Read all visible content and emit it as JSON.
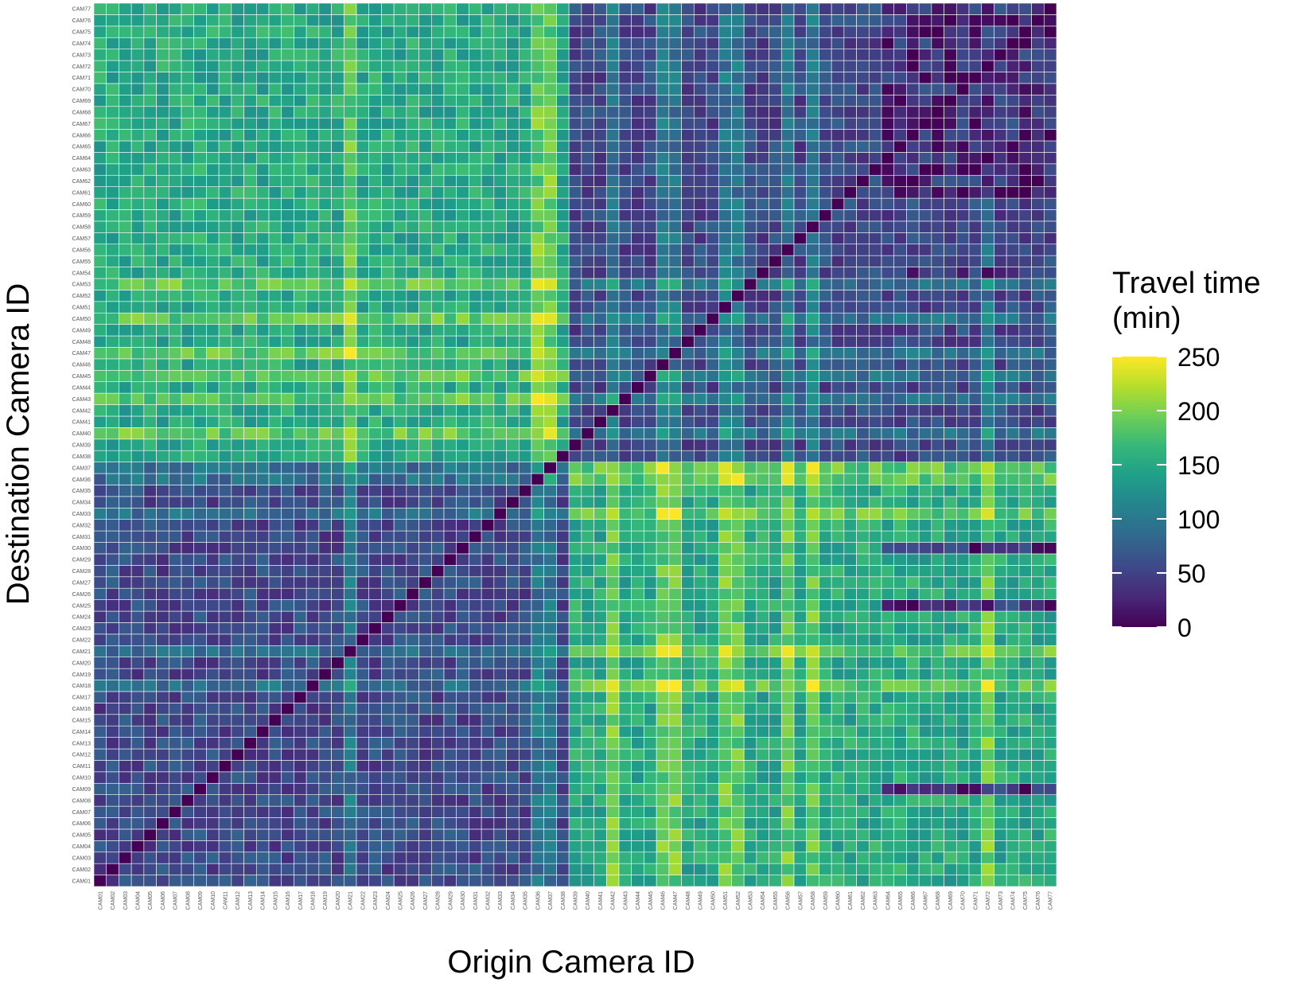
{
  "chart_data": {
    "type": "heatmap",
    "title": "",
    "xlabel": "Origin Camera ID",
    "ylabel": "Destination Camera ID",
    "x_categories": [
      "CAM01",
      "CAM02",
      "CAM03",
      "CAM04",
      "CAM05",
      "CAM06",
      "CAM07",
      "CAM08",
      "CAM09",
      "CAM10",
      "CAM11",
      "CAM12",
      "CAM13",
      "CAM14",
      "CAM15",
      "CAM16",
      "CAM17",
      "CAM18",
      "CAM19",
      "CAM20",
      "CAM21",
      "CAM22",
      "CAM23",
      "CAM24",
      "CAM25",
      "CAM26",
      "CAM27",
      "CAM28",
      "CAM29",
      "CAM30",
      "CAM31",
      "CAM32",
      "CAM33",
      "CAM34",
      "CAM35",
      "CAM36",
      "CAM37",
      "CAM38",
      "CAM39",
      "CAM40",
      "CAM41",
      "CAM42",
      "CAM43",
      "CAM44",
      "CAM45",
      "CAM46",
      "CAM47",
      "CAM48",
      "CAM49",
      "CAM50",
      "CAM51",
      "CAM52",
      "CAM53",
      "CAM54",
      "CAM55",
      "CAM56",
      "CAM57",
      "CAM58",
      "CAM59",
      "CAM60",
      "CAM61",
      "CAM62",
      "CAM63",
      "CAM64",
      "CAM65",
      "CAM66",
      "CAM67",
      "CAM68",
      "CAM69",
      "CAM70",
      "CAM71",
      "CAM72",
      "CAM73",
      "CAM74",
      "CAM75",
      "CAM76",
      "CAM77"
    ],
    "y_categories": [
      "CAM01",
      "CAM02",
      "CAM03",
      "CAM04",
      "CAM05",
      "CAM06",
      "CAM07",
      "CAM08",
      "CAM09",
      "CAM10",
      "CAM11",
      "CAM12",
      "CAM13",
      "CAM14",
      "CAM15",
      "CAM16",
      "CAM17",
      "CAM18",
      "CAM19",
      "CAM20",
      "CAM21",
      "CAM22",
      "CAM23",
      "CAM24",
      "CAM25",
      "CAM26",
      "CAM27",
      "CAM28",
      "CAM29",
      "CAM30",
      "CAM31",
      "CAM32",
      "CAM33",
      "CAM34",
      "CAM35",
      "CAM36",
      "CAM37",
      "CAM38",
      "CAM39",
      "CAM40",
      "CAM41",
      "CAM42",
      "CAM43",
      "CAM44",
      "CAM45",
      "CAM46",
      "CAM47",
      "CAM48",
      "CAM49",
      "CAM50",
      "CAM51",
      "CAM52",
      "CAM53",
      "CAM54",
      "CAM55",
      "CAM56",
      "CAM57",
      "CAM58",
      "CAM59",
      "CAM60",
      "CAM61",
      "CAM62",
      "CAM63",
      "CAM64",
      "CAM65",
      "CAM66",
      "CAM67",
      "CAM68",
      "CAM69",
      "CAM70",
      "CAM71",
      "CAM72",
      "CAM73",
      "CAM74",
      "CAM75",
      "CAM76",
      "CAM77"
    ],
    "value_range": [
      0,
      250
    ],
    "estimation": {
      "origin_cluster_range": [
        [
          0,
          37
        ],
        [
          38,
          76
        ]
      ],
      "destination_cluster_range": [
        [
          0,
          36
        ],
        [
          37,
          76
        ]
      ],
      "within_cluster_mean": 55,
      "cross_cluster_mean": 150,
      "high_origin_cols": [
        20,
        35,
        36,
        41,
        45,
        46,
        50,
        51,
        55,
        57,
        71
      ],
      "high_destination_rows": [
        17,
        20,
        32,
        35,
        36,
        39,
        42,
        44,
        46,
        49,
        52
      ],
      "high_boost": 60,
      "low_rows": [
        8,
        24,
        29,
        53,
        60,
        61,
        62,
        63,
        64,
        65,
        66,
        67,
        68,
        69,
        70,
        71,
        72,
        73,
        74,
        75,
        76
      ],
      "dark_block_value": 20
    },
    "legend": {
      "title_line1": "Travel time",
      "title_line2": "(min)",
      "ticks": [
        "250",
        "200",
        "150",
        "100",
        "50",
        "0"
      ],
      "tick_values": [
        250,
        200,
        150,
        100,
        50,
        0
      ],
      "min": 0,
      "max": 250,
      "colormap": "viridis",
      "placement": "right"
    },
    "colors": [
      "#440154",
      "#482878",
      "#3e4989",
      "#31688e",
      "#26828e",
      "#1f9e89",
      "#35b779",
      "#6ece58",
      "#b5de2b",
      "#fde725"
    ],
    "grid_line_color": "#ffffff"
  }
}
